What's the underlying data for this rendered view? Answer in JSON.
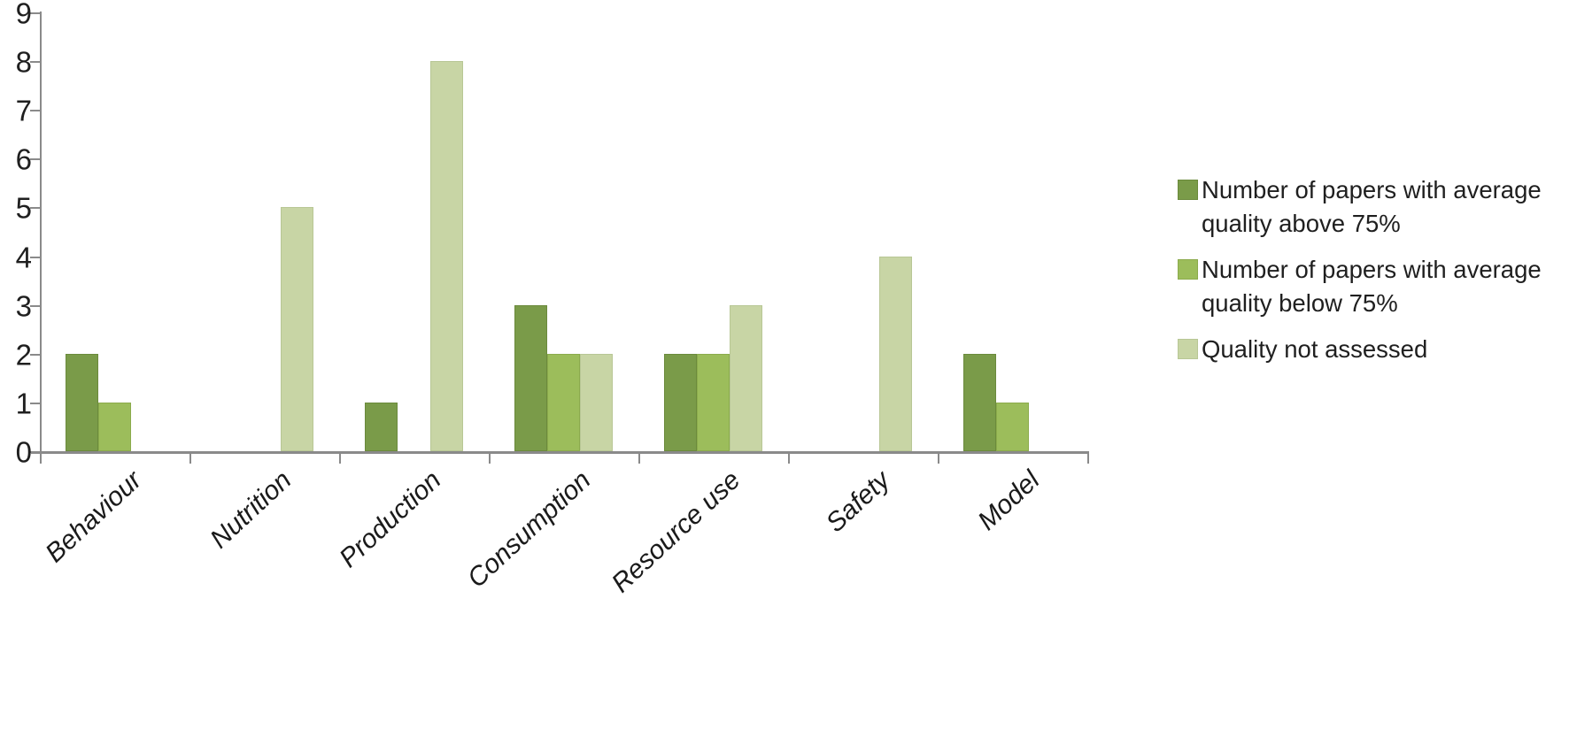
{
  "chart_data": {
    "type": "bar",
    "title": "",
    "xlabel": "",
    "ylabel": "",
    "categories": [
      "Behaviour",
      "Nutrition",
      "Production",
      "Consumption",
      "Resource use",
      "Safety",
      "Model"
    ],
    "series": [
      {
        "name": "Number of papers with average quality above 75%",
        "color": "#7a9b49",
        "border_color": "#6b8a3c",
        "values": [
          2,
          0,
          1,
          3,
          2,
          0,
          2
        ]
      },
      {
        "name": "Number of papers with average quality below 75%",
        "color": "#9cbd5b",
        "border_color": "#8bab4c",
        "values": [
          1,
          0,
          0,
          2,
          2,
          0,
          1
        ]
      },
      {
        "name": "Quality not assessed",
        "color": "#c8d5a5",
        "border_color": "#b8c795",
        "values": [
          0,
          5,
          8,
          2,
          3,
          4,
          0
        ]
      }
    ],
    "ylim": [
      0,
      9
    ],
    "yticks": [
      0,
      1,
      2,
      3,
      4,
      5,
      6,
      7,
      8,
      9
    ],
    "grid": false,
    "legend_position": "right"
  },
  "colors": {
    "axis": "#8a8a8a",
    "text": "#1f1f1f"
  }
}
